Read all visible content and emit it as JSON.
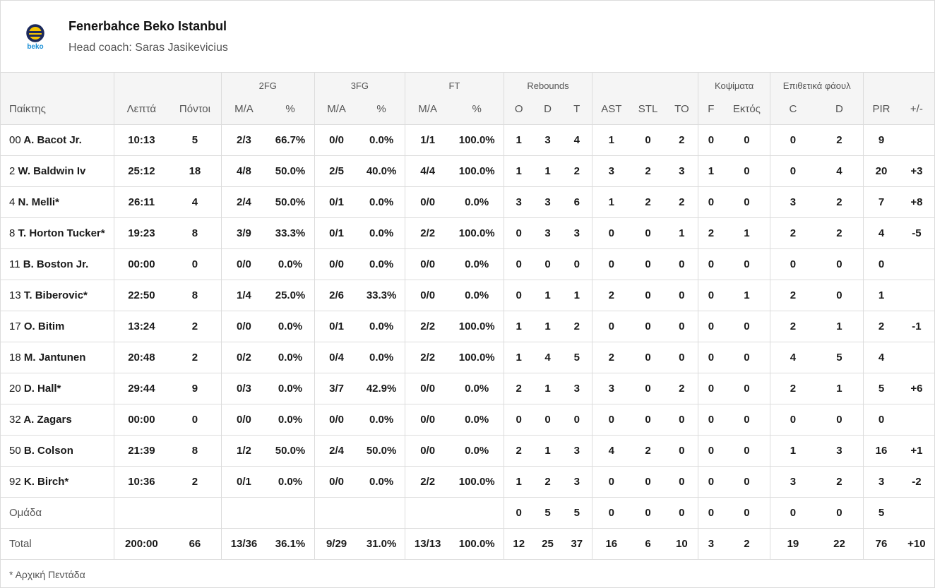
{
  "team": {
    "name": "Fenerbahce Beko Istanbul",
    "coach": "Head coach: Saras Jasikevicius",
    "logo_text": "beko",
    "colors": {
      "navy": "#1c2a5c",
      "yellow": "#f5c400",
      "blue": "#1a8fd6"
    }
  },
  "table": {
    "groups": {
      "fg2": "2FG",
      "fg3": "3FG",
      "ft": "FT",
      "reb": "Rebounds",
      "blocks": "Κοψίματα",
      "fouls": "Επιθετικά φάουλ"
    },
    "columns": [
      "Παίκτης",
      "Λεπτά",
      "Πόντοι",
      "M/A",
      "%",
      "M/A",
      "%",
      "M/A",
      "%",
      "O",
      "D",
      "T",
      "AST",
      "STL",
      "TO",
      "F",
      "Εκτός",
      "C",
      "D",
      "PIR",
      "+/-"
    ],
    "rows": [
      {
        "num": "00",
        "name": "A. Bacot Jr.",
        "cells": [
          "10:13",
          "5",
          "2/3",
          "66.7%",
          "0/0",
          "0.0%",
          "1/1",
          "100.0%",
          "1",
          "3",
          "4",
          "1",
          "0",
          "2",
          "0",
          "0",
          "0",
          "2",
          "9",
          ""
        ]
      },
      {
        "num": "2",
        "name": "W. Baldwin Iv",
        "cells": [
          "25:12",
          "18",
          "4/8",
          "50.0%",
          "2/5",
          "40.0%",
          "4/4",
          "100.0%",
          "1",
          "1",
          "2",
          "3",
          "2",
          "3",
          "1",
          "0",
          "0",
          "4",
          "20",
          "+3"
        ]
      },
      {
        "num": "4",
        "name": "N. Melli*",
        "cells": [
          "26:11",
          "4",
          "2/4",
          "50.0%",
          "0/1",
          "0.0%",
          "0/0",
          "0.0%",
          "3",
          "3",
          "6",
          "1",
          "2",
          "2",
          "0",
          "0",
          "3",
          "2",
          "7",
          "+8"
        ]
      },
      {
        "num": "8",
        "name": "T. Horton Tucker*",
        "cells": [
          "19:23",
          "8",
          "3/9",
          "33.3%",
          "0/1",
          "0.0%",
          "2/2",
          "100.0%",
          "0",
          "3",
          "3",
          "0",
          "0",
          "1",
          "2",
          "1",
          "2",
          "2",
          "4",
          "-5"
        ]
      },
      {
        "num": "11",
        "name": "B. Boston Jr.",
        "cells": [
          "00:00",
          "0",
          "0/0",
          "0.0%",
          "0/0",
          "0.0%",
          "0/0",
          "0.0%",
          "0",
          "0",
          "0",
          "0",
          "0",
          "0",
          "0",
          "0",
          "0",
          "0",
          "0",
          ""
        ]
      },
      {
        "num": "13",
        "name": "T. Biberovic*",
        "cells": [
          "22:50",
          "8",
          "1/4",
          "25.0%",
          "2/6",
          "33.3%",
          "0/0",
          "0.0%",
          "0",
          "1",
          "1",
          "2",
          "0",
          "0",
          "0",
          "1",
          "2",
          "0",
          "1",
          ""
        ]
      },
      {
        "num": "17",
        "name": "O. Bitim",
        "cells": [
          "13:24",
          "2",
          "0/0",
          "0.0%",
          "0/1",
          "0.0%",
          "2/2",
          "100.0%",
          "1",
          "1",
          "2",
          "0",
          "0",
          "0",
          "0",
          "0",
          "2",
          "1",
          "2",
          "-1"
        ]
      },
      {
        "num": "18",
        "name": "M. Jantunen",
        "cells": [
          "20:48",
          "2",
          "0/2",
          "0.0%",
          "0/4",
          "0.0%",
          "2/2",
          "100.0%",
          "1",
          "4",
          "5",
          "2",
          "0",
          "0",
          "0",
          "0",
          "4",
          "5",
          "4",
          ""
        ]
      },
      {
        "num": "20",
        "name": "D. Hall*",
        "cells": [
          "29:44",
          "9",
          "0/3",
          "0.0%",
          "3/7",
          "42.9%",
          "0/0",
          "0.0%",
          "2",
          "1",
          "3",
          "3",
          "0",
          "2",
          "0",
          "0",
          "2",
          "1",
          "5",
          "+6"
        ]
      },
      {
        "num": "32",
        "name": "A. Zagars",
        "cells": [
          "00:00",
          "0",
          "0/0",
          "0.0%",
          "0/0",
          "0.0%",
          "0/0",
          "0.0%",
          "0",
          "0",
          "0",
          "0",
          "0",
          "0",
          "0",
          "0",
          "0",
          "0",
          "0",
          ""
        ]
      },
      {
        "num": "50",
        "name": "B. Colson",
        "cells": [
          "21:39",
          "8",
          "1/2",
          "50.0%",
          "2/4",
          "50.0%",
          "0/0",
          "0.0%",
          "2",
          "1",
          "3",
          "4",
          "2",
          "0",
          "0",
          "0",
          "1",
          "3",
          "16",
          "+1"
        ]
      },
      {
        "num": "92",
        "name": "K. Birch*",
        "cells": [
          "10:36",
          "2",
          "0/1",
          "0.0%",
          "0/0",
          "0.0%",
          "2/2",
          "100.0%",
          "1",
          "2",
          "3",
          "0",
          "0",
          "0",
          "0",
          "0",
          "3",
          "2",
          "3",
          "-2"
        ]
      }
    ],
    "team_row": {
      "label": "Ομάδα",
      "cells": [
        "",
        "",
        "",
        "",
        "",
        "",
        "",
        "",
        "0",
        "5",
        "5",
        "0",
        "0",
        "0",
        "0",
        "0",
        "0",
        "0",
        "5",
        ""
      ]
    },
    "total_row": {
      "label": "Total",
      "cells": [
        "200:00",
        "66",
        "13/36",
        "36.1%",
        "9/29",
        "31.0%",
        "13/13",
        "100.0%",
        "12",
        "25",
        "37",
        "16",
        "6",
        "10",
        "3",
        "2",
        "19",
        "22",
        "76",
        "+10"
      ]
    }
  },
  "footnote": "* Αρχική Πεντάδα"
}
